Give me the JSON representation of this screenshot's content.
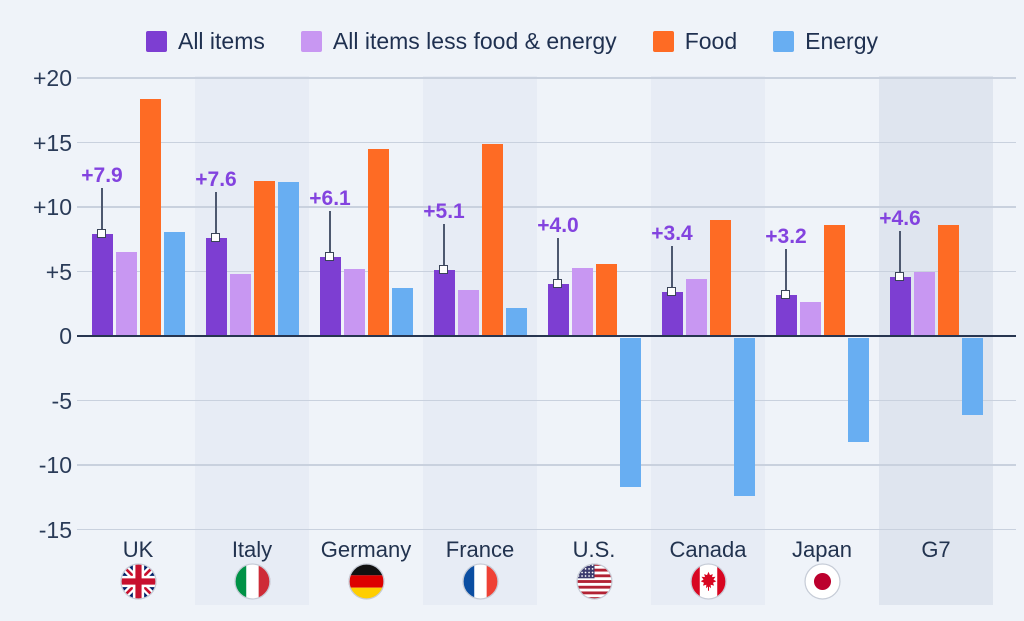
{
  "chart_data": {
    "type": "bar",
    "title": "",
    "ylabel": "",
    "xlabel": "",
    "ylim": [
      -15,
      20
    ],
    "grid": true,
    "legend_position": "top",
    "categories": [
      {
        "label": "UK",
        "flag_icon": "flag-uk",
        "band": "none"
      },
      {
        "label": "Italy",
        "flag_icon": "flag-italy",
        "band": "light"
      },
      {
        "label": "Germany",
        "flag_icon": "flag-germany",
        "band": "none"
      },
      {
        "label": "France",
        "flag_icon": "flag-france",
        "band": "light"
      },
      {
        "label": "U.S.",
        "flag_icon": "flag-us",
        "band": "none"
      },
      {
        "label": "Canada",
        "flag_icon": "flag-canada",
        "band": "light"
      },
      {
        "label": "Japan",
        "flag_icon": "flag-japan",
        "band": "none"
      },
      {
        "label": "G7",
        "flag_icon": null,
        "band": "dark"
      }
    ],
    "series": [
      {
        "name": "All items",
        "color": "#7d3ed2",
        "values": [
          7.9,
          7.6,
          6.1,
          5.1,
          4.0,
          3.4,
          3.2,
          4.6
        ]
      },
      {
        "name": "All items less food & energy",
        "color": "#c897f2",
        "values": [
          6.5,
          4.8,
          5.2,
          3.6,
          5.3,
          4.4,
          2.6,
          5.0
        ]
      },
      {
        "name": "Food",
        "color": "#fe6b24",
        "values": [
          18.4,
          12.0,
          14.5,
          14.9,
          5.6,
          9.0,
          8.6,
          8.6
        ]
      },
      {
        "name": "Energy",
        "color": "#68aef2",
        "values": [
          8.1,
          11.9,
          3.7,
          2.2,
          -11.7,
          -12.4,
          -8.2,
          -6.1
        ]
      }
    ],
    "annotations": [
      "+7.9",
      "+7.6",
      "+6.1",
      "+5.1",
      "+4.0",
      "+3.4",
      "+3.2",
      "+4.6"
    ],
    "annotation_series": "All items"
  },
  "y_axis": {
    "ticks": [
      {
        "label": "+20",
        "value": 20
      },
      {
        "label": "+15",
        "value": 15
      },
      {
        "label": "+10",
        "value": 10
      },
      {
        "label": "+5",
        "value": 5
      },
      {
        "label": "0",
        "value": 0
      },
      {
        "label": "-5",
        "value": -5
      },
      {
        "label": "-10",
        "value": -10
      },
      {
        "label": "-15",
        "value": -15
      }
    ]
  },
  "colors": {
    "background": "#eff3f9",
    "band_light": "#e7ecf5",
    "band_dark": "#dfe5ef",
    "grid_line": "#c9d1de",
    "zero_line": "#273550",
    "axis_text": "#2a3b58",
    "legend_text": "#1f3050",
    "annotation_text": "#8343df"
  }
}
